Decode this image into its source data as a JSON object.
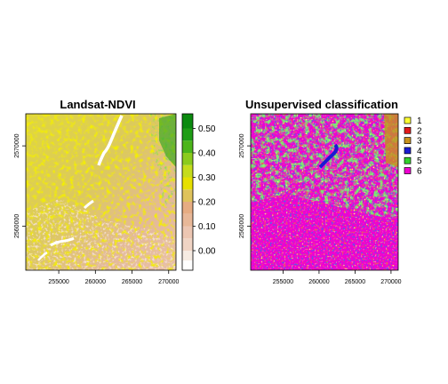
{
  "chart_data": [
    {
      "type": "heatmap",
      "title": "Landsat-NDVI",
      "xlabel": "",
      "ylabel": "",
      "x_ticks": [
        255000,
        260000,
        265000,
        270000
      ],
      "y_ticks": [
        2560000,
        2570000
      ],
      "xlim": [
        250500,
        271000
      ],
      "ylim": [
        2554500,
        2574000
      ],
      "colorbar": {
        "ticks": [
          "0.00",
          "0.10",
          "0.20",
          "0.30",
          "0.40",
          "0.50"
        ],
        "range": [
          -0.08,
          0.56
        ],
        "bands": [
          {
            "from": -0.08,
            "to": -0.04,
            "color": "#ffffff"
          },
          {
            "from": -0.04,
            "to": 0.0,
            "color": "#f6ebe2"
          },
          {
            "from": 0.0,
            "to": 0.05,
            "color": "#f0d4c4"
          },
          {
            "from": 0.05,
            "to": 0.1,
            "color": "#ecc6b2"
          },
          {
            "from": 0.1,
            "to": 0.15,
            "color": "#e8b898"
          },
          {
            "from": 0.15,
            "to": 0.2,
            "color": "#e6ac82"
          },
          {
            "from": 0.2,
            "to": 0.25,
            "color": "#dfc35c"
          },
          {
            "from": 0.25,
            "to": 0.3,
            "color": "#e6e000"
          },
          {
            "from": 0.3,
            "to": 0.35,
            "color": "#c5dc1c"
          },
          {
            "from": 0.35,
            "to": 0.4,
            "color": "#8bcb1d"
          },
          {
            "from": 0.4,
            "to": 0.45,
            "color": "#4cb51b"
          },
          {
            "from": 0.45,
            "to": 0.5,
            "color": "#1f9d16"
          },
          {
            "from": 0.5,
            "to": 0.56,
            "color": "#0b8a0f"
          }
        ]
      }
    },
    {
      "type": "heatmap",
      "title": "Unsupervised classification",
      "xlabel": "",
      "ylabel": "",
      "x_ticks": [
        255000,
        260000,
        265000,
        270000
      ],
      "y_ticks": [
        2560000,
        2570000
      ],
      "xlim": [
        250500,
        271000
      ],
      "ylim": [
        2554500,
        2574000
      ],
      "legend_position": "right",
      "classes": [
        {
          "label": "1",
          "color": "#ffff33"
        },
        {
          "label": "2",
          "color": "#e31a1c"
        },
        {
          "label": "3",
          "color": "#c8921c"
        },
        {
          "label": "4",
          "color": "#1a1ad2"
        },
        {
          "label": "5",
          "color": "#33d12c"
        },
        {
          "label": "6",
          "color": "#f000d2"
        }
      ]
    }
  ]
}
